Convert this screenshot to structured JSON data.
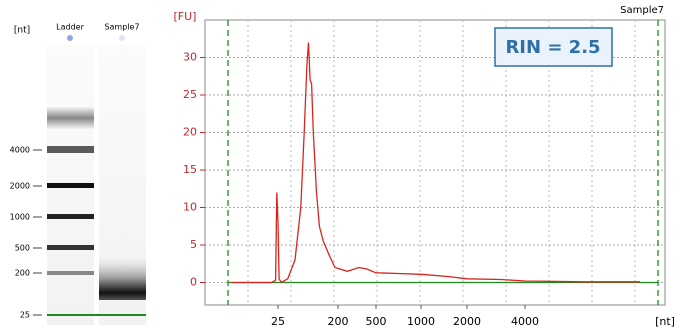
{
  "gel": {
    "axis_label": "[nt]",
    "lanes": [
      "Ladder",
      "Sample7"
    ],
    "ticks": [
      4000,
      2000,
      1000,
      500,
      200,
      25
    ]
  },
  "chart_data": {
    "type": "line",
    "title": "Sample7",
    "y_label": "[FU]",
    "x_label": "[nt]",
    "annotation": "RIN = 2.5",
    "xscale": "log",
    "color": "#d7261e",
    "grid": true,
    "x": [
      5,
      20,
      23,
      24,
      25,
      26,
      28,
      35,
      45,
      55,
      62,
      68,
      72,
      76,
      80,
      85,
      95,
      105,
      120,
      150,
      180,
      250,
      330,
      400,
      500,
      700,
      1000,
      1500,
      2000,
      3000,
      4000,
      8000,
      15000
    ],
    "values": [
      0,
      0,
      0.3,
      12,
      8,
      0.5,
      0,
      0.5,
      3,
      10,
      20,
      29,
      32,
      27,
      26.5,
      20,
      12,
      7.5,
      5.5,
      3.5,
      2,
      1.5,
      2,
      1.8,
      1.3,
      1.2,
      1.1,
      0.8,
      0.5,
      0.4,
      0.2,
      0.1,
      0.1
    ],
    "xlim": [
      2,
      20000
    ],
    "xticks": [
      25,
      200,
      500,
      1000,
      2000,
      4000
    ],
    "ylim": [
      -3,
      35
    ],
    "yticks": [
      0,
      5,
      10,
      15,
      20,
      25,
      30
    ]
  }
}
